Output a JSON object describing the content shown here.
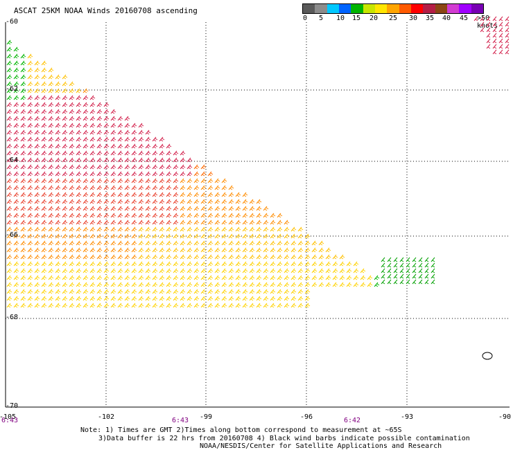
{
  "title": "ASCAT 25KM NOAA Winds 20160708 ascending",
  "color_scale": {
    "labels": [
      "0",
      "5",
      "10",
      "15",
      "20",
      "25",
      "30",
      "35",
      "40",
      "45",
      ">50 knots"
    ],
    "colors": [
      "#5a5a5a",
      "#8c8c8c",
      "#00c8ff",
      "#0064ff",
      "#00b400",
      "#c8e600",
      "#ffe600",
      "#ffa500",
      "#ff5a00",
      "#ff0000",
      "#b41e46",
      "#8c4614",
      "#d23cd2",
      "#a000ff",
      "#7800b4"
    ]
  },
  "axes": {
    "lat_labels": [
      "-60",
      "-62",
      "-64",
      "-66",
      "-68",
      "-70"
    ],
    "lon_labels": [
      "-105",
      "-102",
      "-99",
      "-96",
      "-93",
      "-90"
    ]
  },
  "times": [
    "6:43",
    "6:43",
    "6:42"
  ],
  "notes": [
    "Note: 1) Times are GMT 2)Times along bottom correspond to measurement at ~65S",
    "3)Data buffer is 22 hrs from 20160708 4) Black wind barbs indicate possible contamination",
    "NOAA/NESDIS/Center for Satellite Applications and Research"
  ]
}
